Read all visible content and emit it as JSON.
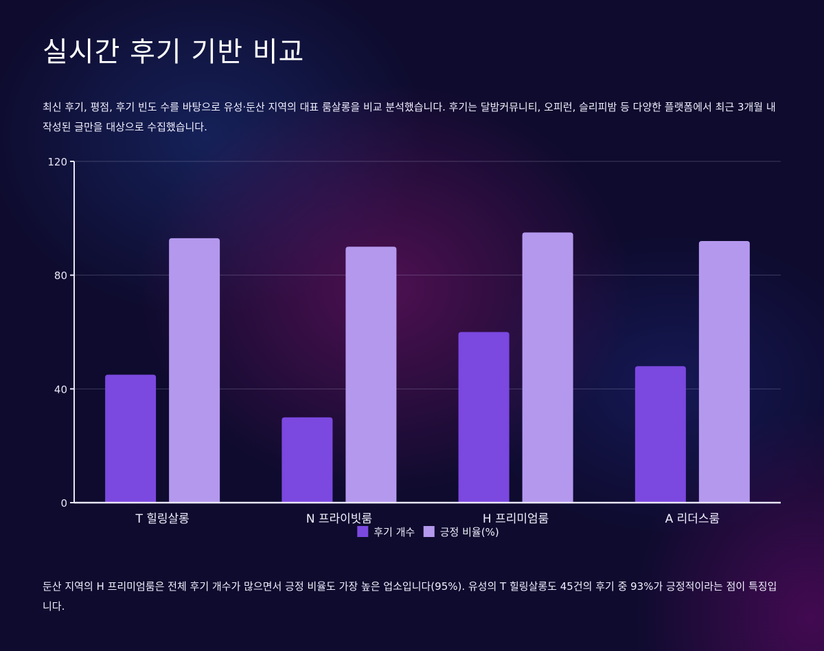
{
  "page": {
    "title": "실시간 후기 기반 비교",
    "description": "최신 후기, 평점, 후기 빈도 수를 바탕으로 유성·둔산 지역의 대표 룸살롱을 비교 분석했습니다. 후기는 달밤커뮤니티, 오피런, 슬리피밤 등 다양한 플랫폼에서 최근 3개월 내 작성된 글만을 대상으로 수집했습니다.",
    "footer": "둔산 지역의 H 프리미엄룸은 전체 후기 개수가 많으면서 긍정 비율도 가장 높은 업소입니다(95%). 유성의 T 힐링살롱도 45건의 후기 중 93%가 긍정적이라는 점이 특징입니다."
  },
  "chart_data": {
    "type": "bar",
    "categories": [
      "T 힐링살롱",
      "N 프라이빗룸",
      "H 프리미엄룸",
      "A 리더스룸"
    ],
    "series": [
      {
        "name": "후기 개수",
        "values": [
          45,
          30,
          60,
          48
        ],
        "color": "#7b48e0"
      },
      {
        "name": "긍정 비율(%)",
        "values": [
          93,
          90,
          95,
          92
        ],
        "color": "#b498ee"
      }
    ],
    "ylim": [
      0,
      120
    ],
    "yticks": [
      0,
      40,
      80,
      120
    ],
    "grid": true,
    "legend": "bottom-center"
  }
}
